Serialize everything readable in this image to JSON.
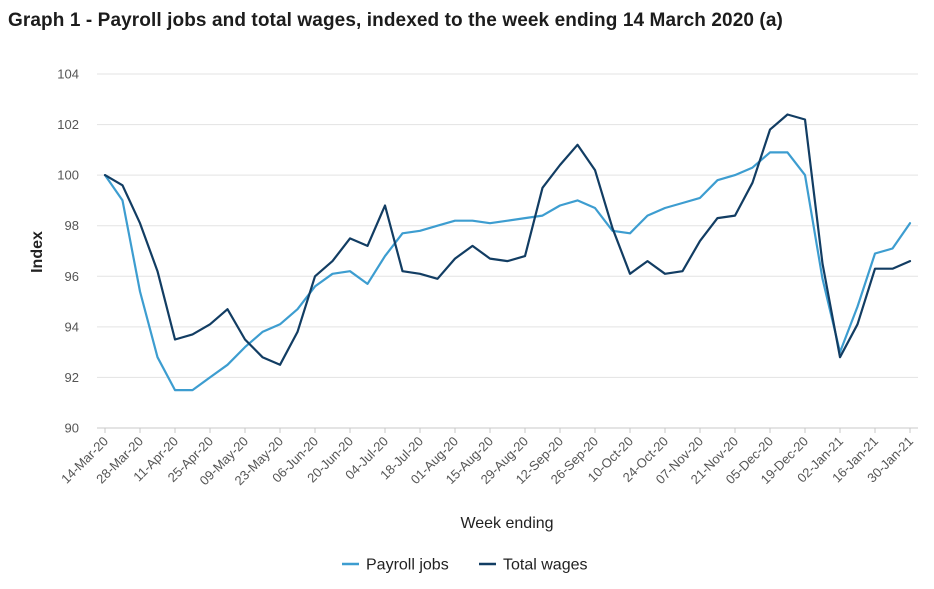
{
  "chart_data": {
    "type": "line",
    "title": "Graph 1 - Payroll jobs and total wages, indexed to the week ending 14 March 2020 (a)",
    "xlabel": "Week ending",
    "ylabel": "Index",
    "ylim": [
      90,
      104
    ],
    "yticks": [
      90,
      92,
      94,
      96,
      98,
      100,
      102,
      104
    ],
    "grid": true,
    "legend_position": "bottom",
    "x_tick_labels": [
      "14-Mar-20",
      "28-Mar-20",
      "11-Apr-20",
      "25-Apr-20",
      "09-May-20",
      "23-May-20",
      "06-Jun-20",
      "20-Jun-20",
      "04-Jul-20",
      "18-Jul-20",
      "01-Aug-20",
      "15-Aug-20",
      "29-Aug-20",
      "12-Sep-20",
      "26-Sep-20",
      "10-Oct-20",
      "24-Oct-20",
      "07-Nov-20",
      "21-Nov-20",
      "05-Dec-20",
      "19-Dec-20",
      "02-Jan-21",
      "16-Jan-21",
      "30-Jan-21"
    ],
    "x": [
      "14-Mar-20",
      "21-Mar-20",
      "28-Mar-20",
      "04-Apr-20",
      "11-Apr-20",
      "18-Apr-20",
      "25-Apr-20",
      "02-May-20",
      "09-May-20",
      "16-May-20",
      "23-May-20",
      "30-May-20",
      "06-Jun-20",
      "13-Jun-20",
      "20-Jun-20",
      "27-Jun-20",
      "04-Jul-20",
      "11-Jul-20",
      "18-Jul-20",
      "25-Jul-20",
      "01-Aug-20",
      "08-Aug-20",
      "15-Aug-20",
      "22-Aug-20",
      "29-Aug-20",
      "05-Sep-20",
      "12-Sep-20",
      "19-Sep-20",
      "26-Sep-20",
      "03-Oct-20",
      "10-Oct-20",
      "17-Oct-20",
      "24-Oct-20",
      "31-Oct-20",
      "07-Nov-20",
      "14-Nov-20",
      "21-Nov-20",
      "28-Nov-20",
      "05-Dec-20",
      "12-Dec-20",
      "19-Dec-20",
      "26-Dec-20",
      "02-Jan-21",
      "09-Jan-21",
      "16-Jan-21",
      "23-Jan-21",
      "30-Jan-21"
    ],
    "series": [
      {
        "name": "Payroll jobs",
        "color": "#3d9dd0",
        "values": [
          100.0,
          99.0,
          95.4,
          92.8,
          91.5,
          91.5,
          92.0,
          92.5,
          93.2,
          93.8,
          94.1,
          94.7,
          95.6,
          96.1,
          96.2,
          95.7,
          96.8,
          97.7,
          97.8,
          98.0,
          98.2,
          98.2,
          98.1,
          98.2,
          98.3,
          98.4,
          98.8,
          99.0,
          98.7,
          97.8,
          97.7,
          98.4,
          98.7,
          98.9,
          99.1,
          99.8,
          100.0,
          100.3,
          100.9,
          100.9,
          100.0,
          95.9,
          93.0,
          94.8,
          96.9,
          97.1,
          98.1
        ]
      },
      {
        "name": "Total wages",
        "color": "#123d63",
        "values": [
          100.0,
          99.6,
          98.1,
          96.2,
          93.5,
          93.7,
          94.1,
          94.7,
          93.5,
          92.8,
          92.5,
          93.8,
          96.0,
          96.6,
          97.5,
          97.2,
          98.8,
          96.2,
          96.1,
          95.9,
          96.7,
          97.2,
          96.7,
          96.6,
          96.8,
          99.5,
          100.4,
          101.2,
          100.2,
          97.9,
          96.1,
          96.6,
          96.1,
          96.2,
          97.4,
          98.3,
          98.4,
          99.7,
          101.8,
          102.4,
          102.2,
          96.5,
          92.8,
          94.1,
          96.3,
          96.3,
          96.6
        ]
      }
    ]
  }
}
